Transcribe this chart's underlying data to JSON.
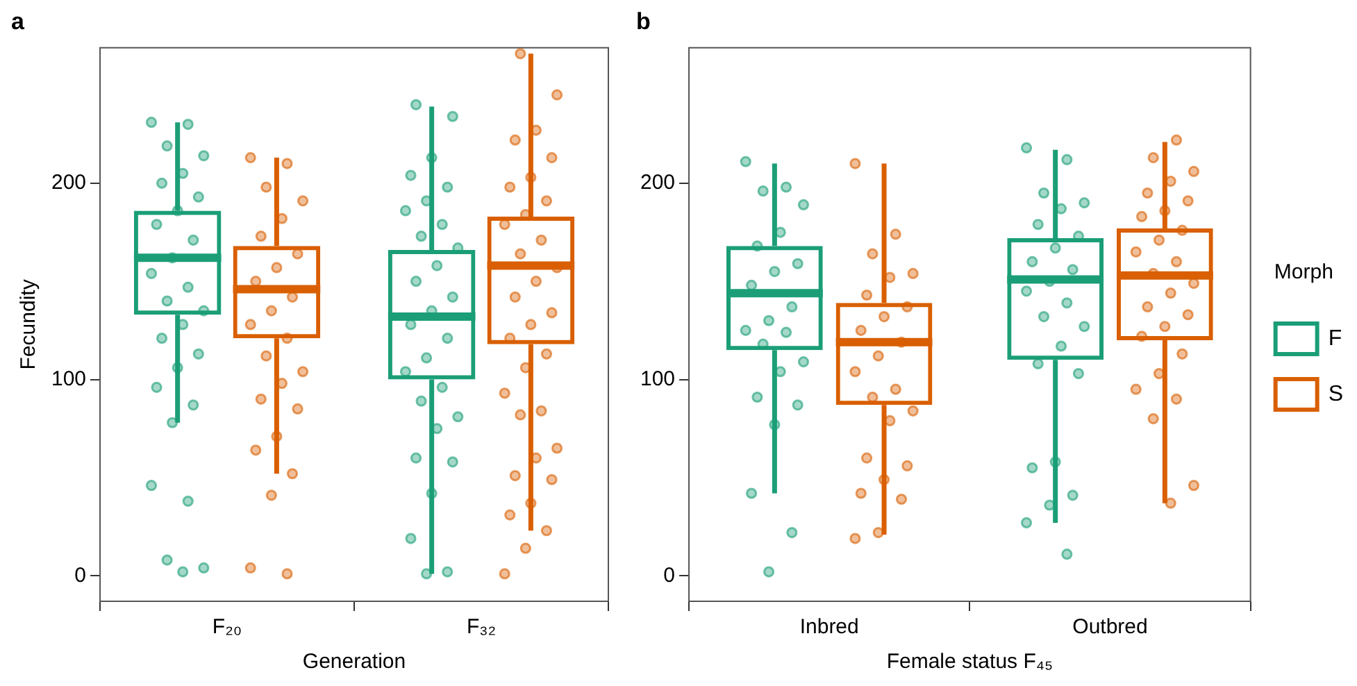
{
  "chart_data": [
    {
      "type": "box",
      "title": "a",
      "xlabel": "Generation",
      "ylabel": "Fecundity",
      "categories": [
        "F₂₀",
        "F₃₂"
      ],
      "ylim": [
        -13,
        269
      ],
      "yticks": [
        0,
        100,
        200
      ],
      "marker": "circle",
      "series": [
        {
          "type": "scatter",
          "color": "#1b9e77",
          "x": [
            "F₂₀",
            "F₂₀",
            "F₂₀",
            "F₂₀",
            "F₂₀",
            "F₂₀",
            "F₂₀",
            "F₂₀",
            "F₂₀",
            "F₂₀",
            "F₂₀",
            "F₂₀",
            "F₂₀",
            "F₂₀",
            "F₂₀",
            "F₂₀",
            "F₂₀",
            "F₂₀",
            "F₂₀",
            "F₂₀",
            "F₂₀",
            "F₂₀",
            "F₂₀",
            "F₂₀",
            "F₂₀",
            "F₂₀",
            "F₂₀",
            "F₃₂",
            "F₃₂",
            "F₃₂",
            "F₃₂",
            "F₃₂",
            "F₃₂",
            "F₃₂",
            "F₃₂",
            "F₃₂",
            "F₃₂",
            "F₃₂",
            "F₃₂",
            "F₃₂",
            "F₃₂",
            "F₃₂",
            "F₃₂",
            "F₃₂",
            "F₃₂",
            "F₃₂",
            "F₃₂",
            "F₃₂",
            "F₃₂",
            "F₃₂",
            "F₃₂",
            "F₃₂",
            "F₃₂",
            "F₃₂",
            "F₃₂"
          ],
          "values": [
            231,
            230,
            219,
            214,
            205,
            200,
            193,
            186,
            179,
            171,
            162,
            154,
            147,
            140,
            135,
            128,
            121,
            113,
            106,
            96,
            87,
            78,
            46,
            38,
            8,
            4,
            2,
            240,
            234,
            213,
            204,
            198,
            191,
            186,
            179,
            173,
            167,
            158,
            150,
            142,
            135,
            128,
            121,
            111,
            104,
            96,
            89,
            81,
            75,
            60,
            58,
            42,
            19,
            2,
            1
          ]
        },
        {
          "type": "scatter",
          "color": "#d95f02",
          "x": [
            "F₂₀",
            "F₂₀",
            "F₂₀",
            "F₂₀",
            "F₂₀",
            "F₂₀",
            "F₂₀",
            "F₂₀",
            "F₂₀",
            "F₂₀",
            "F₂₀",
            "F₂₀",
            "F₂₀",
            "F₂₀",
            "F₂₀",
            "F₂₀",
            "F₂₀",
            "F₂₀",
            "F₂₀",
            "F₂₀",
            "F₂₀",
            "F₂₀",
            "F₂₀",
            "F₂₀",
            "F₃₂",
            "F₃₂",
            "F₃₂",
            "F₃₂",
            "F₃₂",
            "F₃₂",
            "F₃₂",
            "F₃₂",
            "F₃₂",
            "F₃₂",
            "F₃₂",
            "F₃₂",
            "F₃₂",
            "F₃₂",
            "F₃₂",
            "F₃₂",
            "F₃₂",
            "F₃₂",
            "F₃₂",
            "F₃₂",
            "F₃₂",
            "F₃₂",
            "F₃₂",
            "F₃₂",
            "F₃₂",
            "F₃₂",
            "F₃₂",
            "F₃₂",
            "F₃₂",
            "F₃₂",
            "F₃₂",
            "F₃₂"
          ],
          "values": [
            213,
            210,
            198,
            191,
            182,
            173,
            164,
            157,
            150,
            142,
            135,
            128,
            121,
            112,
            104,
            98,
            90,
            85,
            71,
            64,
            52,
            41,
            4,
            1,
            266,
            245,
            227,
            222,
            213,
            203,
            198,
            191,
            184,
            179,
            171,
            164,
            157,
            150,
            142,
            134,
            128,
            121,
            113,
            106,
            93,
            84,
            82,
            65,
            60,
            51,
            49,
            37,
            31,
            23,
            14,
            1
          ]
        },
        {
          "type": "box",
          "color": "#1b9e77",
          "boxes": [
            {
              "low": 78,
              "q1": 133,
              "median": 162,
              "q3": 186,
              "high": 231
            },
            {
              "low": 1,
              "q1": 100,
              "median": 132,
              "q3": 166,
              "high": 239
            }
          ]
        },
        {
          "type": "box",
          "color": "#d95f02",
          "boxes": [
            {
              "low": 52,
              "q1": 121,
              "median": 146,
              "q3": 168,
              "high": 213
            },
            {
              "low": 23,
              "q1": 118,
              "median": 158,
              "q3": 183,
              "high": 266
            }
          ]
        }
      ]
    },
    {
      "type": "box",
      "title": "b",
      "xlabel": "Female status F₄₅",
      "categories": [
        "Inbred",
        "Outbred"
      ],
      "ylim": [
        -13,
        269
      ],
      "yticks": [
        0,
        100,
        200
      ],
      "marker": "circle",
      "legend": "right",
      "legend_title": "Morph",
      "series": [
        {
          "type": "scatter",
          "color": "#1b9e77",
          "x": [
            "Inbred",
            "Inbred",
            "Inbred",
            "Inbred",
            "Inbred",
            "Inbred",
            "Inbred",
            "Inbred",
            "Inbred",
            "Inbred",
            "Inbred",
            "Inbred",
            "Inbred",
            "Inbred",
            "Inbred",
            "Inbred",
            "Inbred",
            "Inbred",
            "Inbred",
            "Inbred",
            "Inbred",
            "Inbred",
            "Outbred",
            "Outbred",
            "Outbred",
            "Outbred",
            "Outbred",
            "Outbred",
            "Outbred",
            "Outbred",
            "Outbred",
            "Outbred",
            "Outbred",
            "Outbred",
            "Outbred",
            "Outbred",
            "Outbred",
            "Outbred",
            "Outbred",
            "Outbred",
            "Outbred",
            "Outbred",
            "Outbred",
            "Outbred",
            "Outbred",
            "Outbred"
          ],
          "values": [
            211,
            198,
            196,
            189,
            175,
            168,
            159,
            155,
            148,
            137,
            130,
            125,
            124,
            118,
            109,
            104,
            91,
            87,
            77,
            42,
            22,
            2,
            218,
            212,
            195,
            190,
            187,
            179,
            173,
            167,
            160,
            156,
            150,
            145,
            139,
            132,
            127,
            117,
            108,
            103,
            58,
            55,
            41,
            36,
            27,
            11
          ]
        },
        {
          "type": "scatter",
          "color": "#d95f02",
          "x": [
            "Inbred",
            "Inbred",
            "Inbred",
            "Inbred",
            "Inbred",
            "Inbred",
            "Inbred",
            "Inbred",
            "Inbred",
            "Inbred",
            "Inbred",
            "Inbred",
            "Inbred",
            "Inbred",
            "Inbred",
            "Inbred",
            "Inbred",
            "Inbred",
            "Inbred",
            "Inbred",
            "Inbred",
            "Inbred",
            "Inbred",
            "Outbred",
            "Outbred",
            "Outbred",
            "Outbred",
            "Outbred",
            "Outbred",
            "Outbred",
            "Outbred",
            "Outbred",
            "Outbred",
            "Outbred",
            "Outbred",
            "Outbred",
            "Outbred",
            "Outbred",
            "Outbred",
            "Outbred",
            "Outbred",
            "Outbred",
            "Outbred",
            "Outbred",
            "Outbred",
            "Outbred",
            "Outbred",
            "Outbred",
            "Outbred"
          ],
          "values": [
            210,
            174,
            164,
            154,
            152,
            143,
            137,
            132,
            125,
            119,
            112,
            104,
            95,
            91,
            84,
            79,
            60,
            56,
            49,
            42,
            39,
            22,
            19,
            222,
            213,
            206,
            201,
            195,
            191,
            186,
            183,
            176,
            171,
            165,
            160,
            154,
            149,
            144,
            137,
            133,
            127,
            122,
            113,
            103,
            95,
            90,
            80,
            46,
            37
          ]
        },
        {
          "type": "box",
          "name": "F",
          "color": "#1b9e77",
          "boxes": [
            {
              "low": 42,
              "q1": 115,
              "median": 144,
              "q3": 168,
              "high": 210
            },
            {
              "low": 27,
              "q1": 110,
              "median": 151,
              "q3": 172,
              "high": 217
            }
          ]
        },
        {
          "type": "box",
          "name": "S",
          "color": "#d95f02",
          "boxes": [
            {
              "low": 21,
              "q1": 87,
              "median": 119,
              "q3": 139,
              "high": 210
            },
            {
              "low": 37,
              "q1": 120,
              "median": 153,
              "q3": 177,
              "high": 221
            }
          ]
        }
      ]
    }
  ]
}
